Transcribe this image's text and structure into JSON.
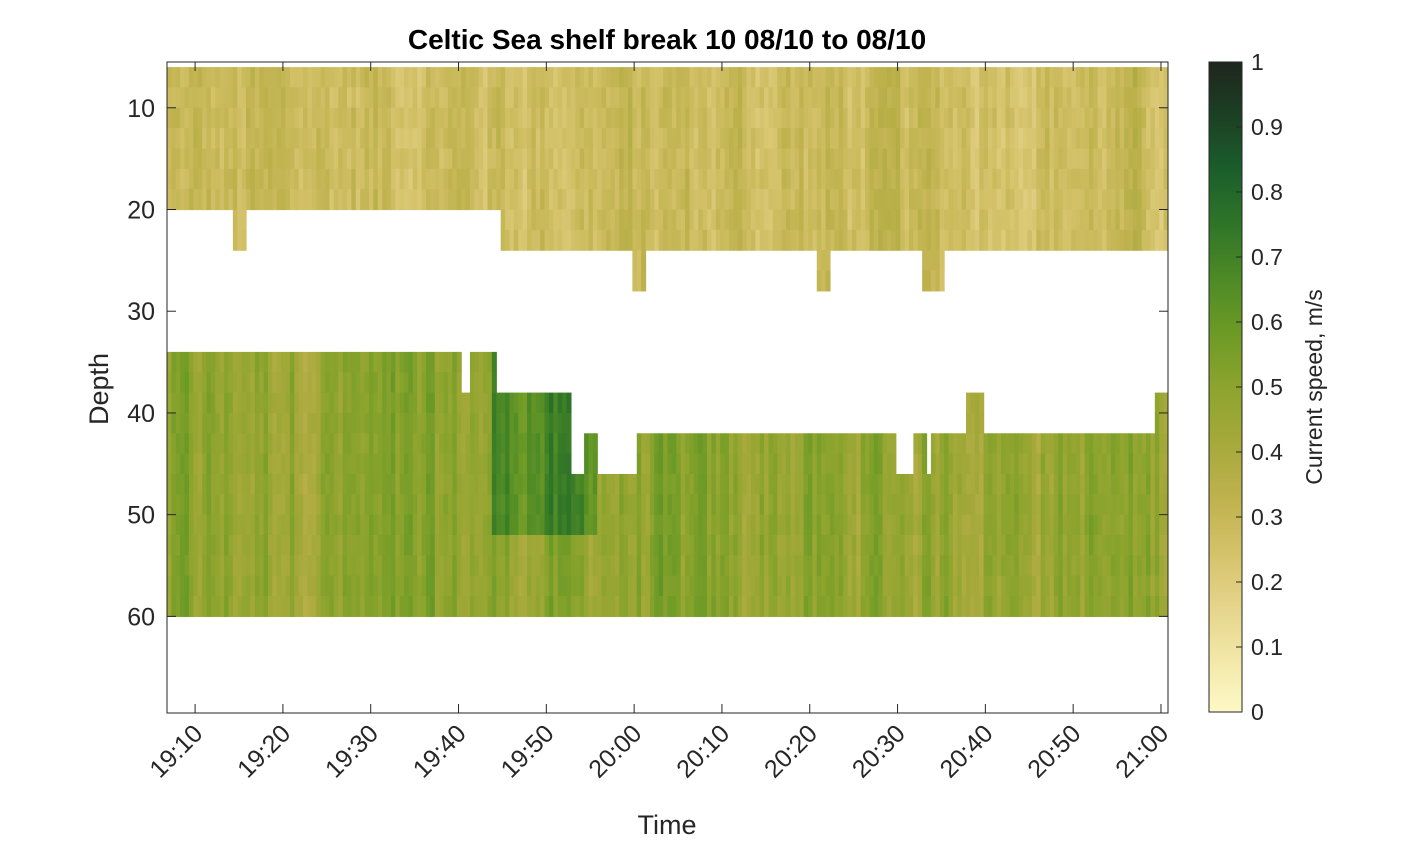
{
  "chart_data": {
    "type": "heatmap",
    "title": "Celtic Sea shelf break 10 08/10 to 08/10",
    "xlabel": "Time",
    "ylabel": "Depth",
    "colorbar_label": "Current speed, m/s",
    "x_tick_labels": [
      "19:10",
      "19:20",
      "19:30",
      "19:40",
      "19:50",
      "20:00",
      "20:10",
      "20:20",
      "20:30",
      "20:40",
      "20:50",
      "21:00"
    ],
    "y_tick_labels": [
      "10",
      "20",
      "30",
      "40",
      "50",
      "60"
    ],
    "colorbar_tick_labels": [
      "0",
      "0.1",
      "0.2",
      "0.3",
      "0.4",
      "0.5",
      "0.6",
      "0.7",
      "0.8",
      "0.9",
      "1"
    ],
    "x_range_minutes_after_1900": [
      6.8,
      120.8
    ],
    "y_range_depth": [
      5.5,
      69.5
    ],
    "y_reversed": true,
    "color_limits": [
      0,
      1
    ],
    "colormap": [
      "#fdf8c6",
      "#f2e7a7",
      "#e4d388",
      "#d3c168",
      "#bdb14c",
      "#a5a93a",
      "#8ca42d",
      "#6c9a26",
      "#4d8a26",
      "#2f7528",
      "#1b5e2c",
      "#1c4024",
      "#1e261e"
    ],
    "depth_bins": [
      7,
      9,
      11,
      13,
      15,
      17,
      19,
      21,
      23,
      25,
      27,
      29,
      31,
      33,
      35,
      37,
      39,
      41,
      43,
      45,
      47,
      49,
      51,
      53,
      55,
      57,
      59,
      61
    ],
    "time_range": [
      "19:06.8",
      "21:00.8"
    ],
    "typical_speed_upper_layer": 0.28,
    "typical_speed_lower_layer": 0.48,
    "upper_layer_bottom_depth": [
      {
        "t": "19:06.8",
        "depth": 21
      },
      {
        "t": "19:14.5",
        "depth": 25
      },
      {
        "t": "19:16.0",
        "depth": 21
      },
      {
        "t": "19:45.0",
        "depth": 25
      },
      {
        "t": "20:00.0",
        "depth": 29
      },
      {
        "t": "20:01.5",
        "depth": 25
      },
      {
        "t": "20:21.0",
        "depth": 29
      },
      {
        "t": "20:22.5",
        "depth": 25
      },
      {
        "t": "20:33.0",
        "depth": 29
      },
      {
        "t": "20:35.5",
        "depth": 25
      }
    ],
    "lower_layer_top_depth": [
      {
        "t": "19:06.8",
        "depth": 33
      },
      {
        "t": "19:40.5",
        "depth": 37
      },
      {
        "t": "19:41.5",
        "depth": 33
      },
      {
        "t": "19:44.5",
        "depth": 37
      },
      {
        "t": "19:53.0",
        "depth": 45
      },
      {
        "t": "19:54.5",
        "depth": 41
      },
      {
        "t": "19:56.0",
        "depth": 45
      },
      {
        "t": "20:00.5",
        "depth": 41
      },
      {
        "t": "20:30.0",
        "depth": 45
      },
      {
        "t": "20:32.0",
        "depth": 41
      },
      {
        "t": "20:33.5",
        "depth": 45
      },
      {
        "t": "20:34.0",
        "depth": 41
      },
      {
        "t": "20:38.0",
        "depth": 37
      },
      {
        "t": "20:40.0",
        "depth": 41
      },
      {
        "t": "20:59.5",
        "depth": 37
      }
    ],
    "lower_layer_bottom_depth": 61
  }
}
